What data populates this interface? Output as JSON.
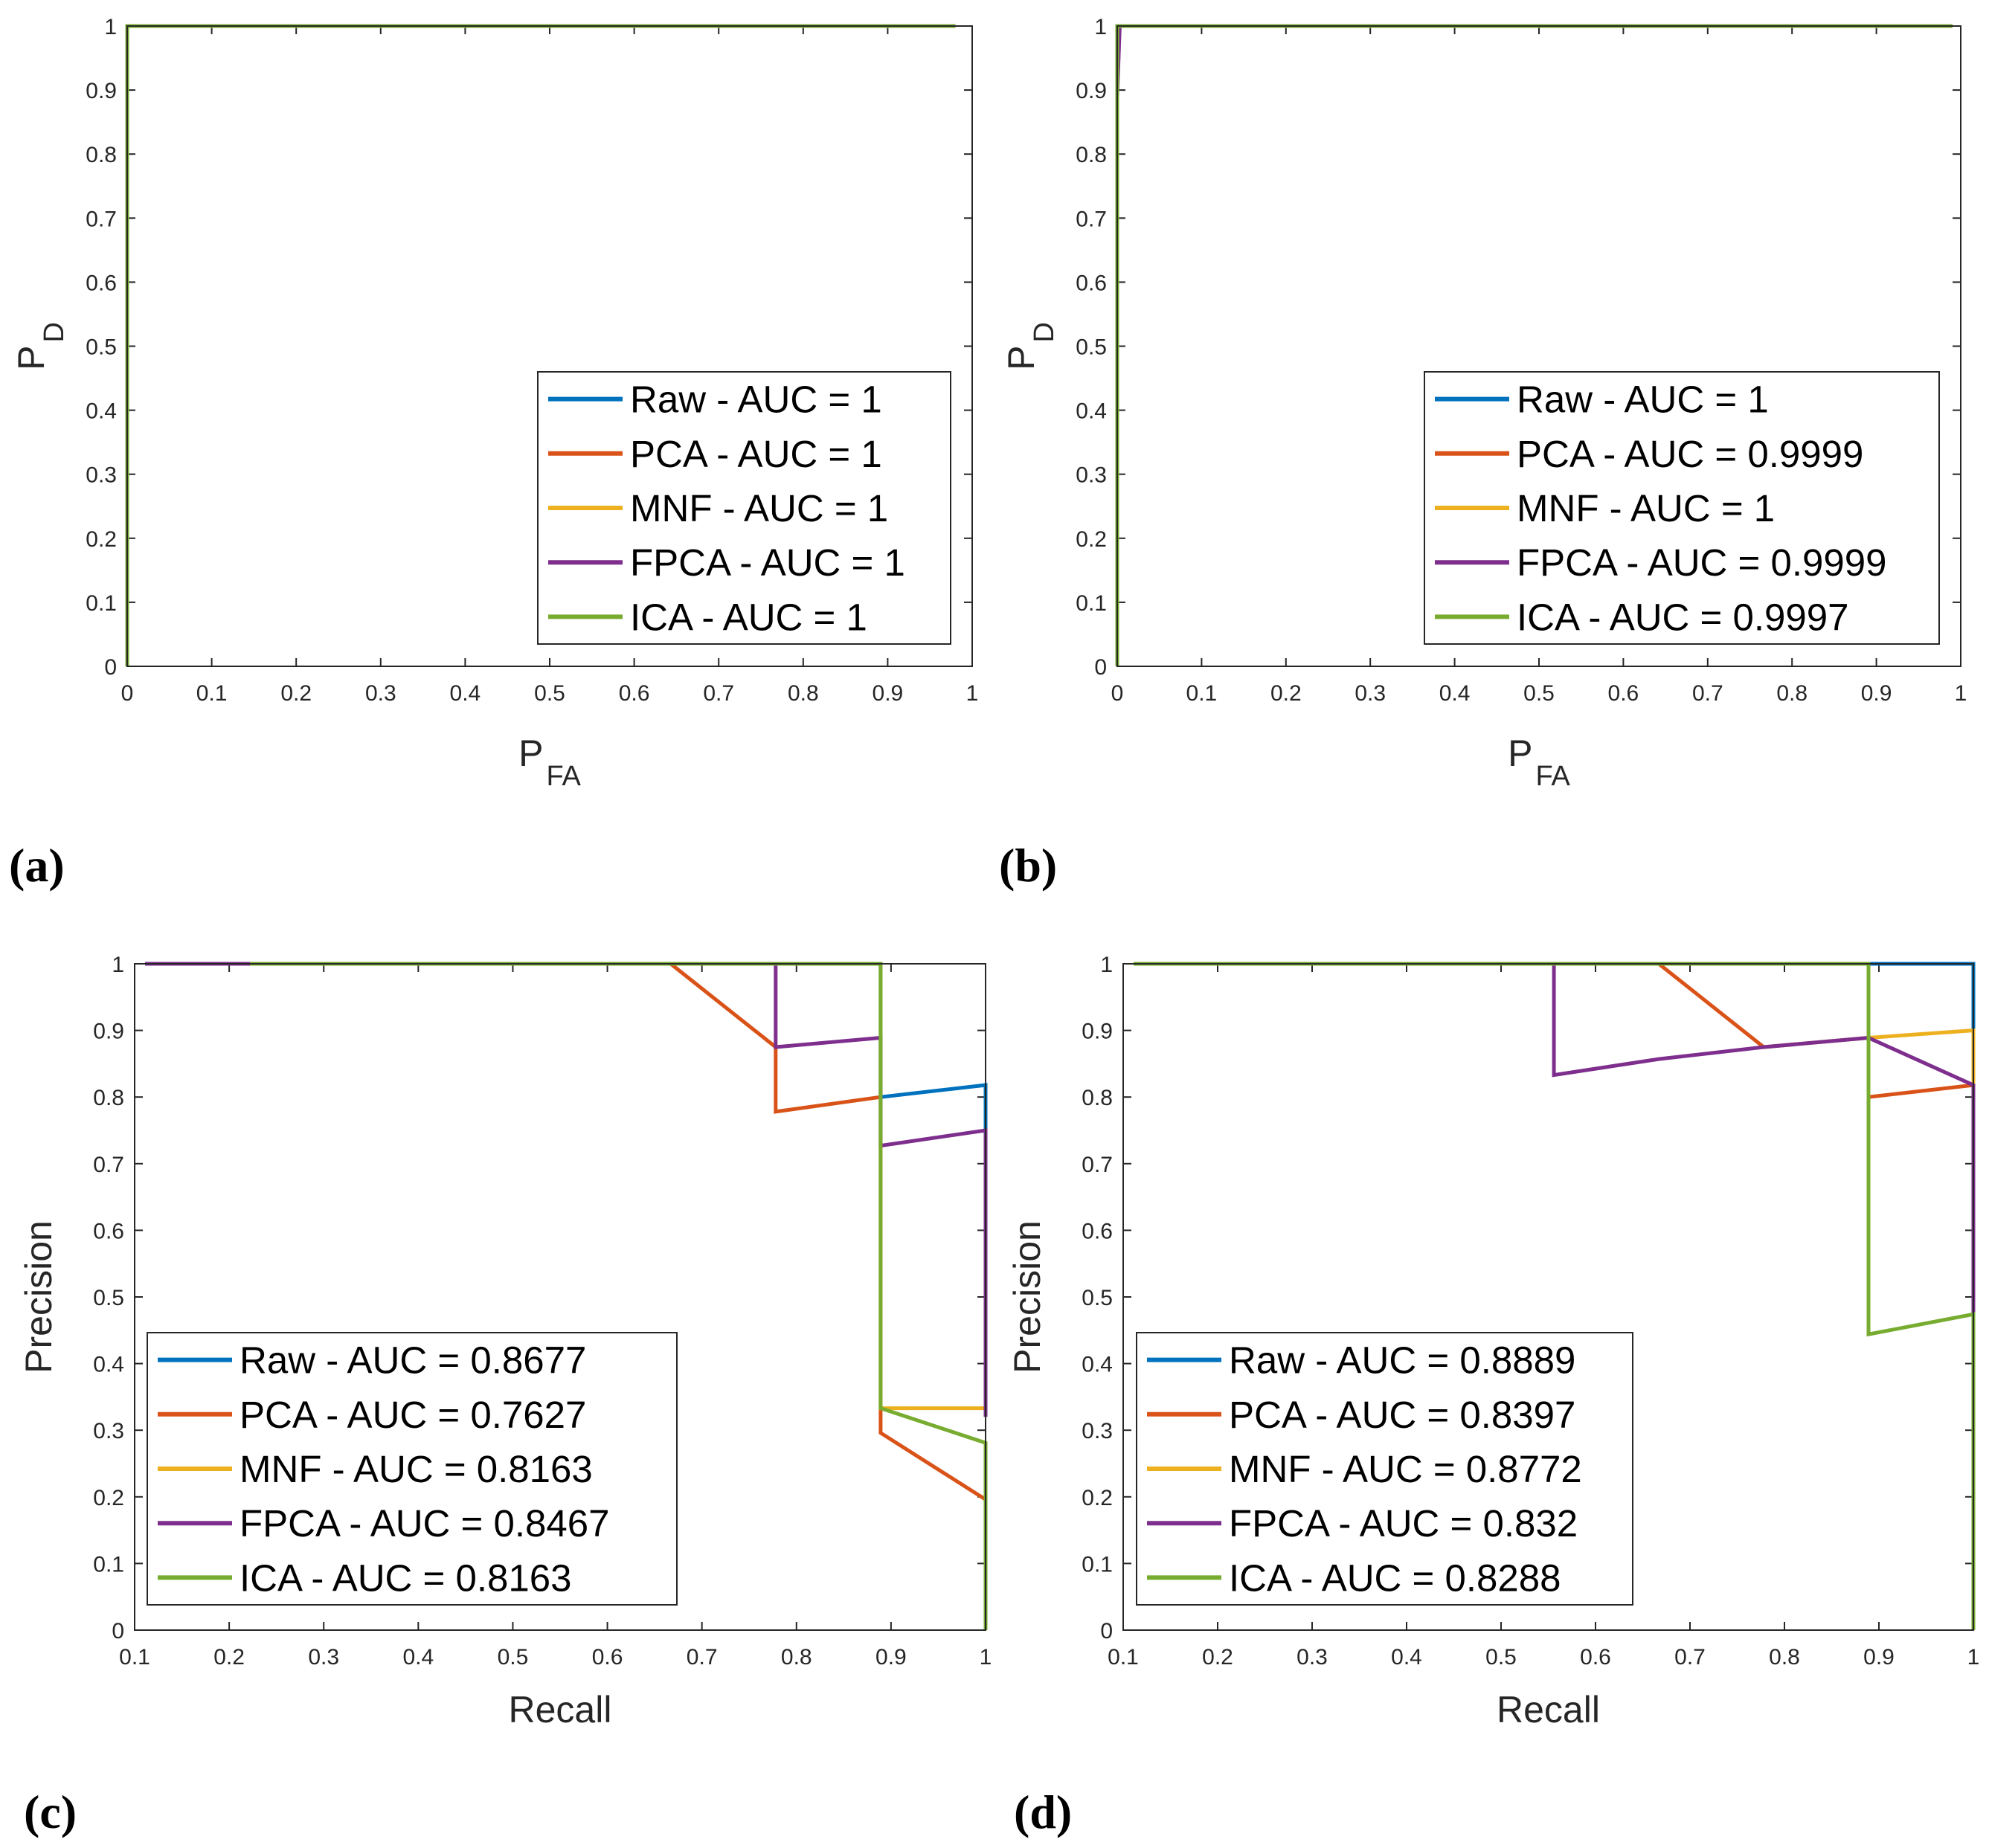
{
  "colors": {
    "Raw": "#0072BD",
    "PCA": "#D95319",
    "MNF": "#EDB120",
    "FPCA": "#7E2F8E",
    "ICA": "#77AC30"
  },
  "chart_data": [
    {
      "type": "line",
      "panel_label": "(a)",
      "xlabel": {
        "main": "P",
        "sub": "FA"
      },
      "ylabel": {
        "main": "P",
        "sub": "D"
      },
      "xlim": [
        0,
        1
      ],
      "ylim": [
        0,
        1
      ],
      "xticks": [
        0,
        0.1,
        0.2,
        0.3,
        0.4,
        0.5,
        0.6,
        0.7,
        0.8,
        0.9,
        1
      ],
      "yticks": [
        0,
        0.1,
        0.2,
        0.3,
        0.4,
        0.5,
        0.6,
        0.7,
        0.8,
        0.9,
        1
      ],
      "legend_position": "bottom-right",
      "series": [
        {
          "name": "Raw",
          "label": "Raw - AUC = 1",
          "points": [
            [
              0,
              0
            ],
            [
              0,
              1
            ],
            [
              0.98,
              1
            ]
          ]
        },
        {
          "name": "PCA",
          "label": "PCA - AUC = 1",
          "points": [
            [
              0,
              0
            ],
            [
              0,
              1
            ],
            [
              0.98,
              1
            ]
          ]
        },
        {
          "name": "MNF",
          "label": "MNF - AUC = 1",
          "points": [
            [
              0,
              0
            ],
            [
              0,
              1
            ],
            [
              0.98,
              1
            ]
          ]
        },
        {
          "name": "FPCA",
          "label": "FPCA - AUC = 1",
          "points": [
            [
              0,
              0
            ],
            [
              0,
              1
            ],
            [
              0.98,
              1
            ]
          ]
        },
        {
          "name": "ICA",
          "label": "ICA - AUC = 1",
          "points": [
            [
              0,
              0
            ],
            [
              0,
              1
            ],
            [
              0.98,
              1
            ]
          ]
        }
      ]
    },
    {
      "type": "line",
      "panel_label": "(b)",
      "xlabel": {
        "main": "P",
        "sub": "FA"
      },
      "ylabel": {
        "main": "P",
        "sub": "D"
      },
      "xlim": [
        0,
        1
      ],
      "ylim": [
        0,
        1
      ],
      "xticks": [
        0,
        0.1,
        0.2,
        0.3,
        0.4,
        0.5,
        0.6,
        0.7,
        0.8,
        0.9,
        1
      ],
      "yticks": [
        0,
        0.1,
        0.2,
        0.3,
        0.4,
        0.5,
        0.6,
        0.7,
        0.8,
        0.9,
        1
      ],
      "legend_position": "bottom-right",
      "series": [
        {
          "name": "Raw",
          "label": "Raw - AUC = 1",
          "points": [
            [
              0,
              0
            ],
            [
              0,
              1
            ],
            [
              0.99,
              1
            ]
          ]
        },
        {
          "name": "PCA",
          "label": "PCA - AUC = 0.9999",
          "points": [
            [
              0,
              0
            ],
            [
              0,
              0.97
            ],
            [
              0.002,
              1
            ],
            [
              0.99,
              1
            ]
          ]
        },
        {
          "name": "MNF",
          "label": "MNF - AUC = 1",
          "points": [
            [
              0,
              0
            ],
            [
              0,
              1
            ],
            [
              0.99,
              1
            ]
          ]
        },
        {
          "name": "FPCA",
          "label": "FPCA - AUC = 0.9999",
          "points": [
            [
              0,
              0
            ],
            [
              0,
              0.89
            ],
            [
              0.003,
              1
            ],
            [
              0.99,
              1
            ]
          ]
        },
        {
          "name": "ICA",
          "label": "ICA - AUC = 0.9997",
          "points": [
            [
              0,
              0
            ],
            [
              0,
              1
            ],
            [
              0.99,
              1
            ]
          ]
        }
      ]
    },
    {
      "type": "line",
      "panel_label": "(c)",
      "xlabel": {
        "main": "Recall",
        "sub": ""
      },
      "ylabel": {
        "main": "Precision",
        "sub": ""
      },
      "xlim": [
        0.1,
        1
      ],
      "ylim": [
        0,
        1
      ],
      "xticks": [
        0.1,
        0.2,
        0.3,
        0.4,
        0.5,
        0.6,
        0.7,
        0.8,
        0.9,
        1
      ],
      "yticks": [
        0,
        0.1,
        0.2,
        0.3,
        0.4,
        0.5,
        0.6,
        0.7,
        0.8,
        0.9,
        1
      ],
      "legend_position": "bottom-left",
      "series": [
        {
          "name": "Raw",
          "label": "Raw - AUC = 0.8677",
          "points": [
            [
              0.111,
              1
            ],
            [
              0.889,
              1
            ],
            [
              0.889,
              0.8
            ],
            [
              1,
              0.818
            ],
            [
              1,
              0.75
            ]
          ]
        },
        {
          "name": "PCA",
          "label": "PCA - AUC = 0.7627",
          "points": [
            [
              0.111,
              1
            ],
            [
              0.667,
              1
            ],
            [
              0.778,
              0.875
            ],
            [
              0.778,
              0.778
            ],
            [
              0.889,
              0.8
            ],
            [
              0.889,
              0.296
            ],
            [
              1,
              0.196
            ]
          ]
        },
        {
          "name": "MNF",
          "label": "MNF - AUC = 0.8163",
          "points": [
            [
              0.111,
              1
            ],
            [
              0.889,
              1
            ],
            [
              0.889,
              0.333
            ],
            [
              1,
              0.333
            ]
          ]
        },
        {
          "name": "FPCA",
          "label": "FPCA - AUC = 0.8467",
          "points": [
            [
              0.111,
              1
            ],
            [
              0.778,
              1
            ],
            [
              0.778,
              0.875
            ],
            [
              0.889,
              0.889
            ],
            [
              0.889,
              0.727
            ],
            [
              1,
              0.75
            ],
            [
              1,
              0.32
            ]
          ]
        },
        {
          "name": "ICA",
          "label": "ICA - AUC = 0.8163",
          "points": [
            [
              0.222,
              1
            ],
            [
              0.889,
              1
            ],
            [
              0.889,
              0.333
            ],
            [
              1,
              0.281
            ],
            [
              1,
              0
            ]
          ]
        }
      ]
    },
    {
      "type": "line",
      "panel_label": "(d)",
      "xlabel": {
        "main": "Recall",
        "sub": ""
      },
      "ylabel": {
        "main": "Precision",
        "sub": ""
      },
      "xlim": [
        0.1,
        1
      ],
      "ylim": [
        0,
        1
      ],
      "xticks": [
        0.1,
        0.2,
        0.3,
        0.4,
        0.5,
        0.6,
        0.7,
        0.8,
        0.9,
        1
      ],
      "yticks": [
        0,
        0.1,
        0.2,
        0.3,
        0.4,
        0.5,
        0.6,
        0.7,
        0.8,
        0.9,
        1
      ],
      "legend_position": "bottom-left",
      "series": [
        {
          "name": "Raw",
          "label": "Raw - AUC = 0.8889",
          "points": [
            [
              0.111,
              1
            ],
            [
              1,
              1
            ],
            [
              1,
              0.9
            ]
          ]
        },
        {
          "name": "PCA",
          "label": "PCA - AUC = 0.8397",
          "points": [
            [
              0.111,
              1
            ],
            [
              0.667,
              1
            ],
            [
              0.778,
              0.875
            ],
            [
              0.889,
              0.889
            ],
            [
              0.889,
              0.8
            ],
            [
              1,
              0.818
            ]
          ]
        },
        {
          "name": "MNF",
          "label": "MNF - AUC = 0.8772",
          "points": [
            [
              0.111,
              1
            ],
            [
              0.889,
              1
            ],
            [
              0.889,
              0.889
            ],
            [
              1,
              0.9
            ],
            [
              1,
              0.82
            ]
          ]
        },
        {
          "name": "FPCA",
          "label": "FPCA - AUC = 0.832",
          "points": [
            [
              0.111,
              1
            ],
            [
              0.556,
              1
            ],
            [
              0.556,
              0.833
            ],
            [
              0.667,
              0.857
            ],
            [
              0.778,
              0.875
            ],
            [
              0.889,
              0.889
            ],
            [
              1,
              0.818
            ],
            [
              1,
              0.476
            ]
          ]
        },
        {
          "name": "ICA",
          "label": "ICA - AUC = 0.8288",
          "points": [
            [
              0.111,
              1
            ],
            [
              0.889,
              1
            ],
            [
              0.889,
              0.444
            ],
            [
              1,
              0.474
            ],
            [
              1,
              0
            ]
          ]
        }
      ]
    }
  ]
}
